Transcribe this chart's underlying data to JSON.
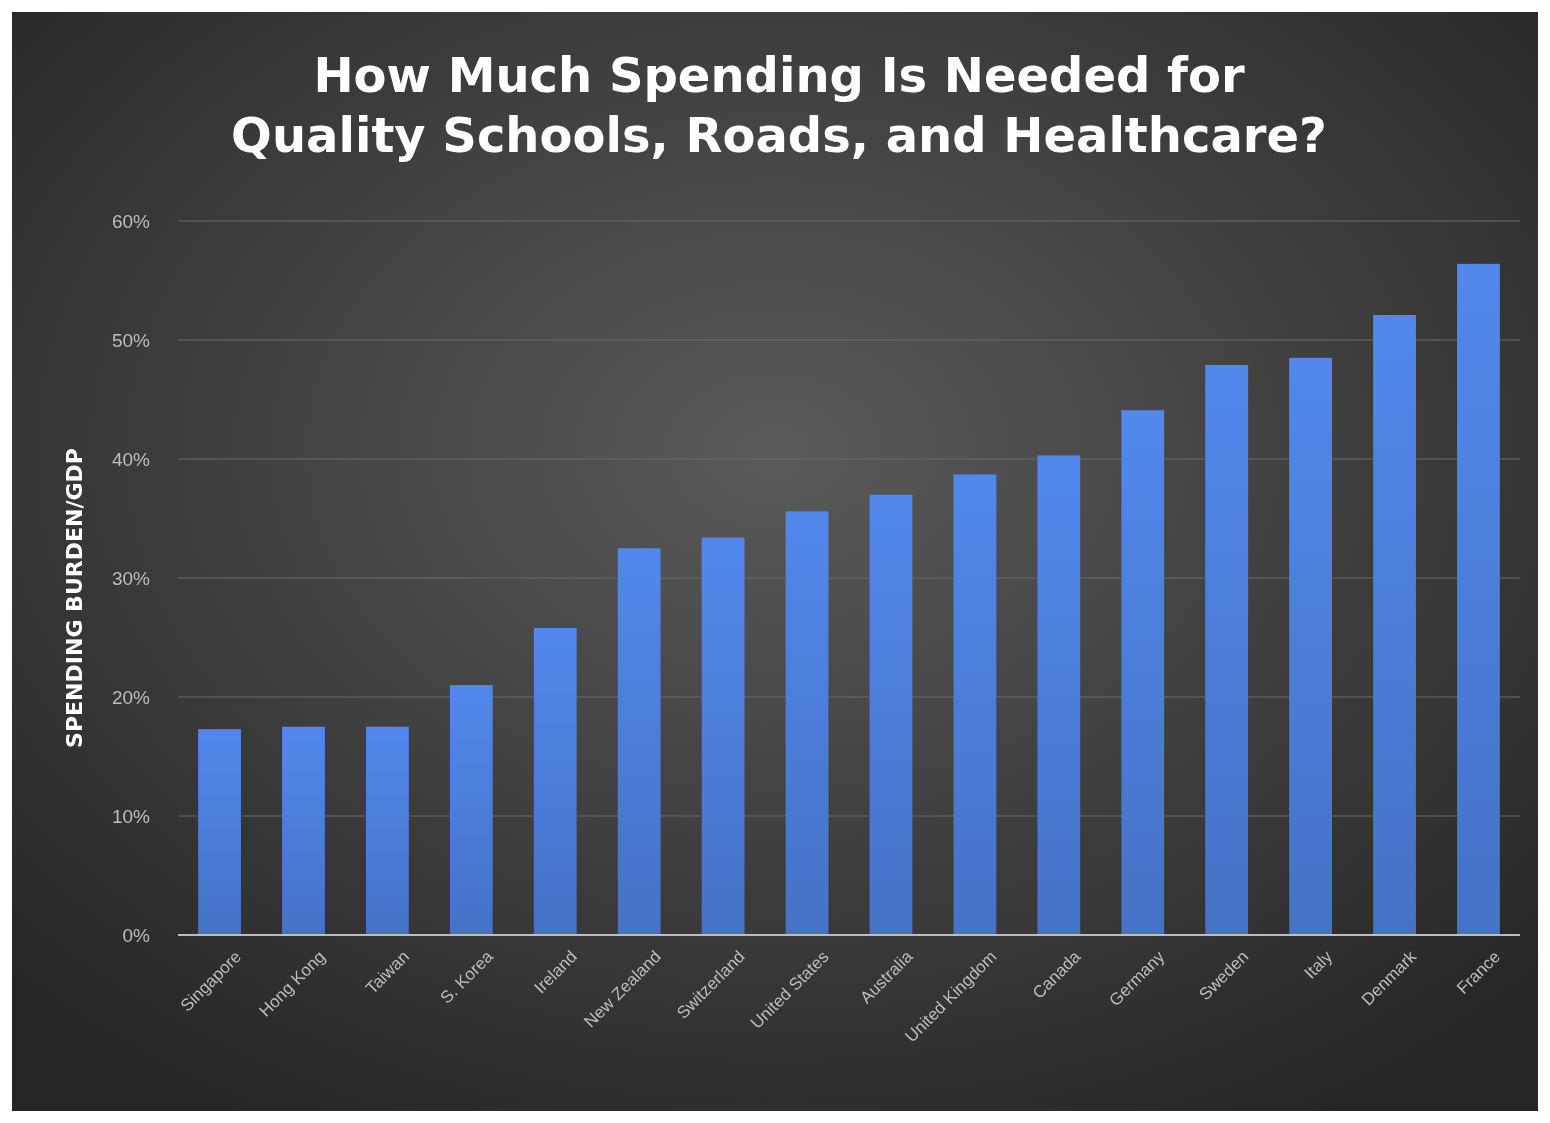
{
  "chart_data": {
    "type": "bar",
    "title": "How Much Spending Is Needed for\nQuality Schools, Roads, and Healthcare?",
    "ylabel": "SPENDING BURDEN/GDP",
    "categories": [
      "Singapore",
      "Hong Kong",
      "Taiwan",
      "S. Korea",
      "Ireland",
      "New Zealand",
      "Switzerland",
      "United States",
      "Australia",
      "United Kingdom",
      "Canada",
      "Germany",
      "Sweden",
      "Italy",
      "Denmark",
      "France"
    ],
    "values": [
      17.3,
      17.5,
      17.5,
      21.0,
      25.8,
      32.5,
      33.4,
      35.6,
      37.0,
      38.7,
      40.3,
      44.1,
      47.9,
      48.5,
      52.1,
      56.4
    ],
    "color": "#4a7ad4",
    "ylim": [
      0,
      60
    ],
    "yticks": [
      {
        "value": 0,
        "label": "0%"
      },
      {
        "value": 10,
        "label": "10%"
      },
      {
        "value": 20,
        "label": "20%"
      },
      {
        "value": 30,
        "label": "30%"
      },
      {
        "value": 40,
        "label": "40%"
      },
      {
        "value": 50,
        "label": "50%"
      },
      {
        "value": 60,
        "label": "60%"
      }
    ],
    "grid": "y"
  }
}
